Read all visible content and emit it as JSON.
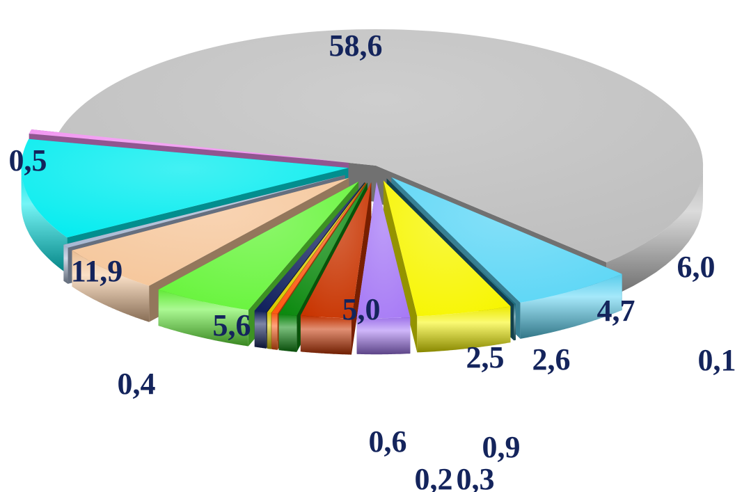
{
  "chart_data": {
    "type": "pie",
    "style": "exploded-3d",
    "title": "",
    "legend": "none",
    "slices": [
      {
        "label": "58,6",
        "value": 58.6,
        "color": "#bdbdbd"
      },
      {
        "label": "6,0",
        "value": 6.0,
        "color": "#5bd6f6"
      },
      {
        "label": "0,1",
        "value": 0.1,
        "color": "#1d6b7e"
      },
      {
        "label": "4,7",
        "value": 4.7,
        "color": "#f7f500"
      },
      {
        "label": "2,6",
        "value": 2.6,
        "color": "#a77bf5"
      },
      {
        "label": "2,5",
        "value": 2.5,
        "color": "#c83400"
      },
      {
        "label": "0,9",
        "value": 0.9,
        "color": "#0d8a10"
      },
      {
        "label": "0,3",
        "value": 0.3,
        "color": "#ff5a12"
      },
      {
        "label": "0,2",
        "value": 0.2,
        "color": "#d9c900"
      },
      {
        "label": "0,6",
        "value": 0.6,
        "color": "#12225e"
      },
      {
        "label": "5,0",
        "value": 5.0,
        "color": "#66f43a"
      },
      {
        "label": "5,6",
        "value": 5.6,
        "color": "#f5c69a"
      },
      {
        "label": "0,4",
        "value": 0.4,
        "color": "#a9b9d3"
      },
      {
        "label": "11,9",
        "value": 11.9,
        "color": "#04ecef"
      },
      {
        "label": "0,5",
        "value": 0.5,
        "color": "#f08ff0"
      }
    ]
  }
}
